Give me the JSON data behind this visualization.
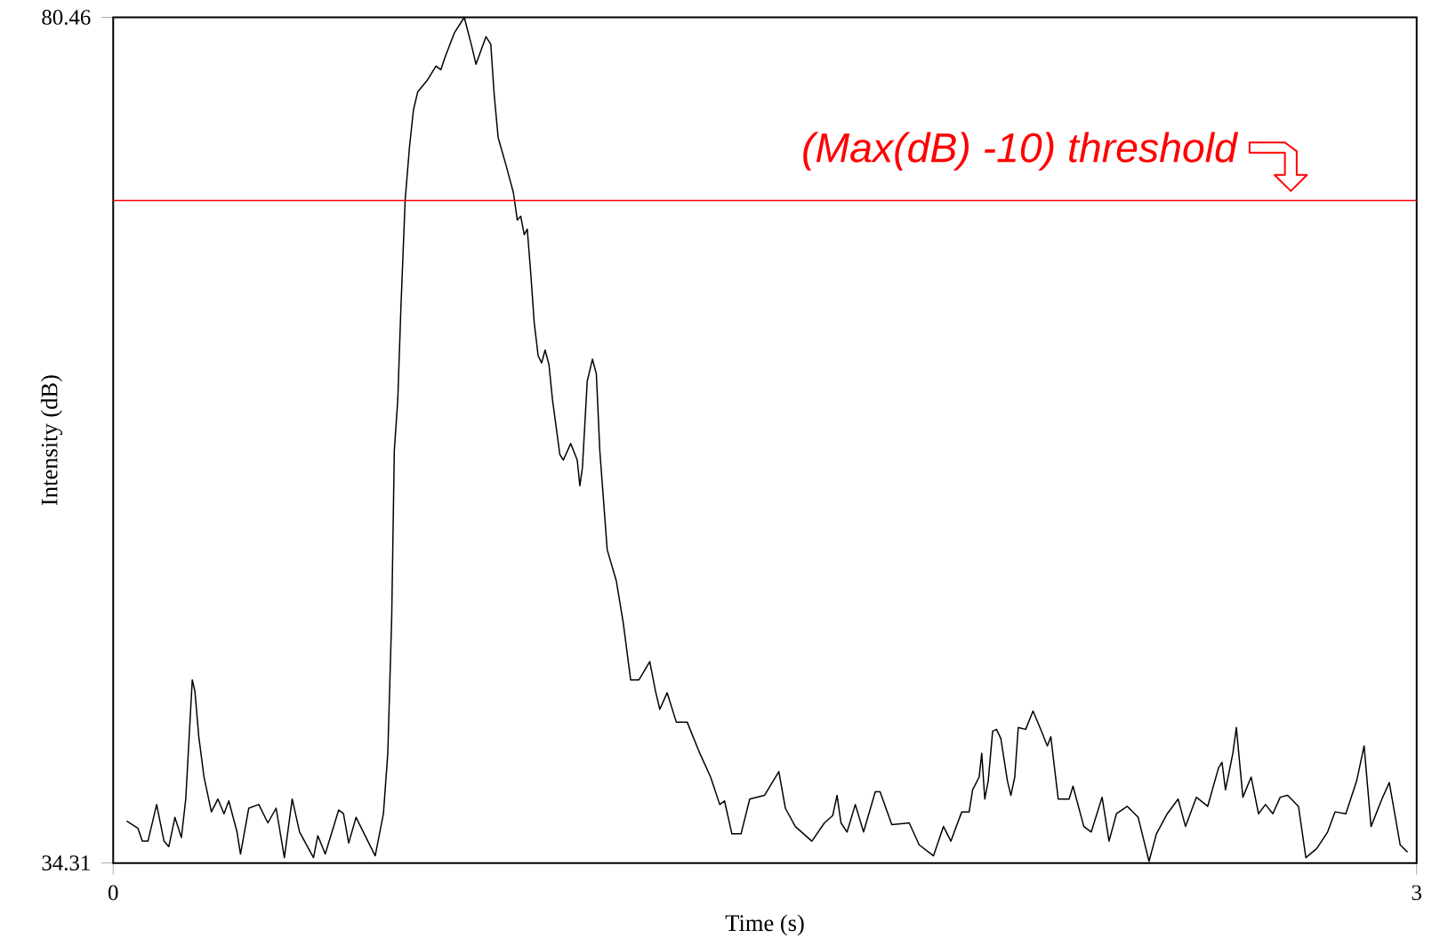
{
  "chart_data": {
    "type": "line",
    "xlabel": "Time (s)",
    "ylabel": "Intensity (dB)",
    "x": [
      0.031,
      0.057,
      0.067,
      0.08,
      0.1,
      0.117,
      0.128,
      0.142,
      0.157,
      0.167,
      0.176,
      0.182,
      0.188,
      0.197,
      0.209,
      0.226,
      0.241,
      0.255,
      0.266,
      0.285,
      0.293,
      0.312,
      0.335,
      0.356,
      0.375,
      0.394,
      0.412,
      0.429,
      0.461,
      0.471,
      0.488,
      0.519,
      0.53,
      0.542,
      0.559,
      0.603,
      0.622,
      0.632,
      0.641,
      0.647,
      0.655,
      0.662,
      0.672,
      0.682,
      0.691,
      0.701,
      0.722,
      0.743,
      0.754,
      0.764,
      0.785,
      0.808,
      0.825,
      0.835,
      0.858,
      0.869,
      0.877,
      0.886,
      0.904,
      0.921,
      0.93,
      0.938,
      0.946,
      0.953,
      0.961,
      0.969,
      0.978,
      0.986,
      0.994,
      1.003,
      1.011,
      1.028,
      1.036,
      1.053,
      1.068,
      1.074,
      1.08,
      1.091,
      1.103,
      1.112,
      1.12,
      1.137,
      1.158,
      1.174,
      1.191,
      1.21,
      1.235,
      1.248,
      1.258,
      1.275,
      1.296,
      1.321,
      1.35,
      1.375,
      1.396,
      1.407,
      1.424,
      1.445,
      1.465,
      1.499,
      1.532,
      1.547,
      1.57,
      1.608,
      1.637,
      1.656,
      1.666,
      1.675,
      1.689,
      1.708,
      1.727,
      1.754,
      1.765,
      1.792,
      1.832,
      1.855,
      1.888,
      1.911,
      1.928,
      1.953,
      1.97,
      1.978,
      1.993,
      1.999,
      2.006,
      2.014,
      2.024,
      2.033,
      2.043,
      2.058,
      2.066,
      2.075,
      2.083,
      2.1,
      2.117,
      2.133,
      2.15,
      2.158,
      2.175,
      2.2,
      2.209,
      2.234,
      2.251,
      2.276,
      2.292,
      2.309,
      2.334,
      2.359,
      2.384,
      2.401,
      2.426,
      2.451,
      2.468,
      2.493,
      2.519,
      2.544,
      2.552,
      2.56,
      2.577,
      2.585,
      2.6,
      2.619,
      2.636,
      2.652,
      2.669,
      2.686,
      2.703,
      2.728,
      2.745,
      2.77,
      2.795,
      2.812,
      2.837,
      2.862,
      2.879,
      2.895,
      2.92,
      2.937,
      2.962,
      2.979
    ],
    "series": [
      {
        "color": "#000000",
        "values": [
          36.6,
          36.2,
          35.5,
          35.5,
          37.5,
          35.5,
          35.2,
          36.8,
          35.7,
          37.8,
          41.7,
          44.3,
          43.7,
          41.2,
          39.0,
          37.1,
          37.8,
          37.0,
          37.7,
          36.0,
          34.8,
          37.3,
          37.5,
          36.5,
          37.3,
          34.6,
          37.8,
          36.0,
          34.6,
          35.8,
          34.8,
          37.2,
          37.0,
          35.4,
          36.8,
          34.7,
          37.0,
          40.3,
          47.7,
          56.8,
          59.6,
          64.5,
          70.5,
          73.4,
          75.4,
          76.4,
          77.0,
          77.8,
          77.6,
          78.3,
          79.6,
          80.46,
          78.9,
          77.9,
          79.4,
          79.0,
          76.2,
          73.9,
          72.4,
          70.9,
          69.4,
          69.6,
          68.6,
          68.9,
          66.5,
          63.8,
          62.0,
          61.6,
          62.3,
          61.5,
          59.6,
          56.6,
          56.3,
          57.2,
          56.3,
          54.9,
          55.9,
          60.6,
          61.8,
          61.0,
          56.8,
          51.4,
          49.7,
          47.4,
          44.3,
          44.3,
          45.3,
          43.7,
          42.7,
          43.6,
          42.0,
          42.0,
          40.3,
          39.0,
          37.5,
          37.7,
          35.9,
          35.9,
          37.8,
          38.0,
          39.3,
          37.3,
          36.3,
          35.5,
          36.5,
          36.9,
          38.0,
          36.5,
          36.0,
          37.5,
          36.0,
          38.2,
          38.2,
          36.4,
          36.5,
          35.3,
          34.7,
          36.3,
          35.5,
          37.1,
          37.1,
          38.3,
          39.0,
          40.3,
          37.8,
          38.8,
          41.5,
          41.6,
          41.1,
          38.8,
          38.0,
          39.0,
          41.7,
          41.6,
          42.6,
          41.7,
          40.7,
          41.2,
          37.8,
          37.8,
          38.5,
          36.3,
          36.0,
          37.9,
          35.5,
          37.0,
          37.4,
          36.8,
          34.4,
          35.9,
          37.0,
          37.8,
          36.3,
          37.9,
          37.4,
          39.5,
          39.8,
          38.3,
          40.3,
          41.7,
          37.9,
          39.0,
          37.0,
          37.5,
          37.0,
          37.9,
          38.0,
          37.4,
          34.6,
          35.1,
          36.0,
          37.1,
          37.0,
          38.8,
          40.7,
          36.3,
          37.8,
          38.7,
          35.3,
          34.9
        ]
      }
    ],
    "xlim": [
      0,
      3
    ],
    "ylim": [
      34.31,
      80.46
    ],
    "xticks": [
      0,
      3
    ],
    "yticks": [
      34.31,
      80.46
    ],
    "ref_lines": [
      {
        "axis": "y",
        "value": 70.46,
        "label": "(Max(dB) -10) threshold",
        "color": "#ff0000"
      }
    ],
    "line_style": "solid"
  }
}
